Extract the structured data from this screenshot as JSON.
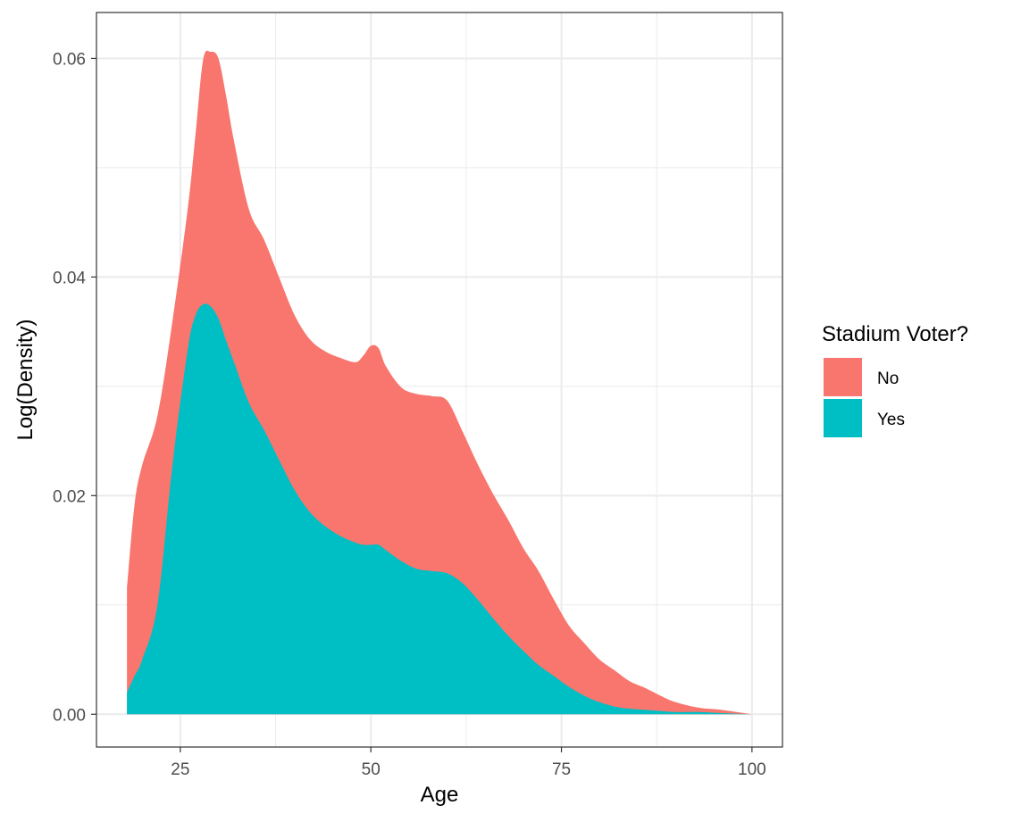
{
  "chart_data": {
    "type": "area",
    "stacked": true,
    "xlabel": "Age",
    "ylabel": "Log(Density)",
    "xlim": [
      14,
      104
    ],
    "ylim": [
      -0.003,
      0.0642
    ],
    "x_ticks": [
      25,
      50,
      75,
      100
    ],
    "x_tick_labels": [
      "25",
      "50",
      "75",
      "100"
    ],
    "y_ticks": [
      0.0,
      0.02,
      0.04,
      0.06
    ],
    "y_tick_labels": [
      "0.00",
      "0.02",
      "0.04",
      "0.06"
    ],
    "grid": true,
    "legend": {
      "title": "Stadium Voter?",
      "placement": "right"
    },
    "x": [
      18,
      19,
      20,
      22,
      24,
      26,
      27,
      28,
      29,
      30,
      31,
      32,
      34,
      36,
      38,
      40,
      42,
      44,
      46,
      48,
      49,
      50,
      51,
      52,
      54,
      56,
      58,
      60,
      62,
      64,
      66,
      68,
      70,
      72,
      74,
      76,
      78,
      80,
      82,
      84,
      86,
      88,
      90,
      93,
      96,
      100
    ],
    "series": [
      {
        "name": "No",
        "color": "#F8766D",
        "values": [
          0.0096,
          0.0157,
          0.0178,
          0.0173,
          0.0131,
          0.0129,
          0.0166,
          0.0224,
          0.0233,
          0.0238,
          0.0224,
          0.0203,
          0.0177,
          0.0174,
          0.0167,
          0.016,
          0.0158,
          0.016,
          0.0163,
          0.0165,
          0.0173,
          0.0182,
          0.018,
          0.0168,
          0.0159,
          0.016,
          0.016,
          0.0158,
          0.0139,
          0.0124,
          0.0114,
          0.0106,
          0.0094,
          0.0086,
          0.007,
          0.0056,
          0.0048,
          0.0039,
          0.0033,
          0.0025,
          0.002,
          0.0014,
          0.0009,
          0.0004,
          0.0003,
          0.0
        ]
      },
      {
        "name": "Yes",
        "color": "#00BFC4",
        "values": [
          0.002,
          0.0035,
          0.005,
          0.01,
          0.023,
          0.0335,
          0.0365,
          0.0375,
          0.0373,
          0.0362,
          0.0342,
          0.0323,
          0.0285,
          0.026,
          0.0232,
          0.0205,
          0.0185,
          0.0172,
          0.0163,
          0.0157,
          0.0155,
          0.0155,
          0.0155,
          0.015,
          0.014,
          0.0133,
          0.0131,
          0.0129,
          0.012,
          0.0105,
          0.0088,
          0.0072,
          0.0058,
          0.0045,
          0.0035,
          0.0025,
          0.0017,
          0.0011,
          0.0007,
          0.0005,
          0.0004,
          0.0003,
          0.0002,
          0.0002,
          0.0001,
          0.0
        ]
      }
    ]
  }
}
